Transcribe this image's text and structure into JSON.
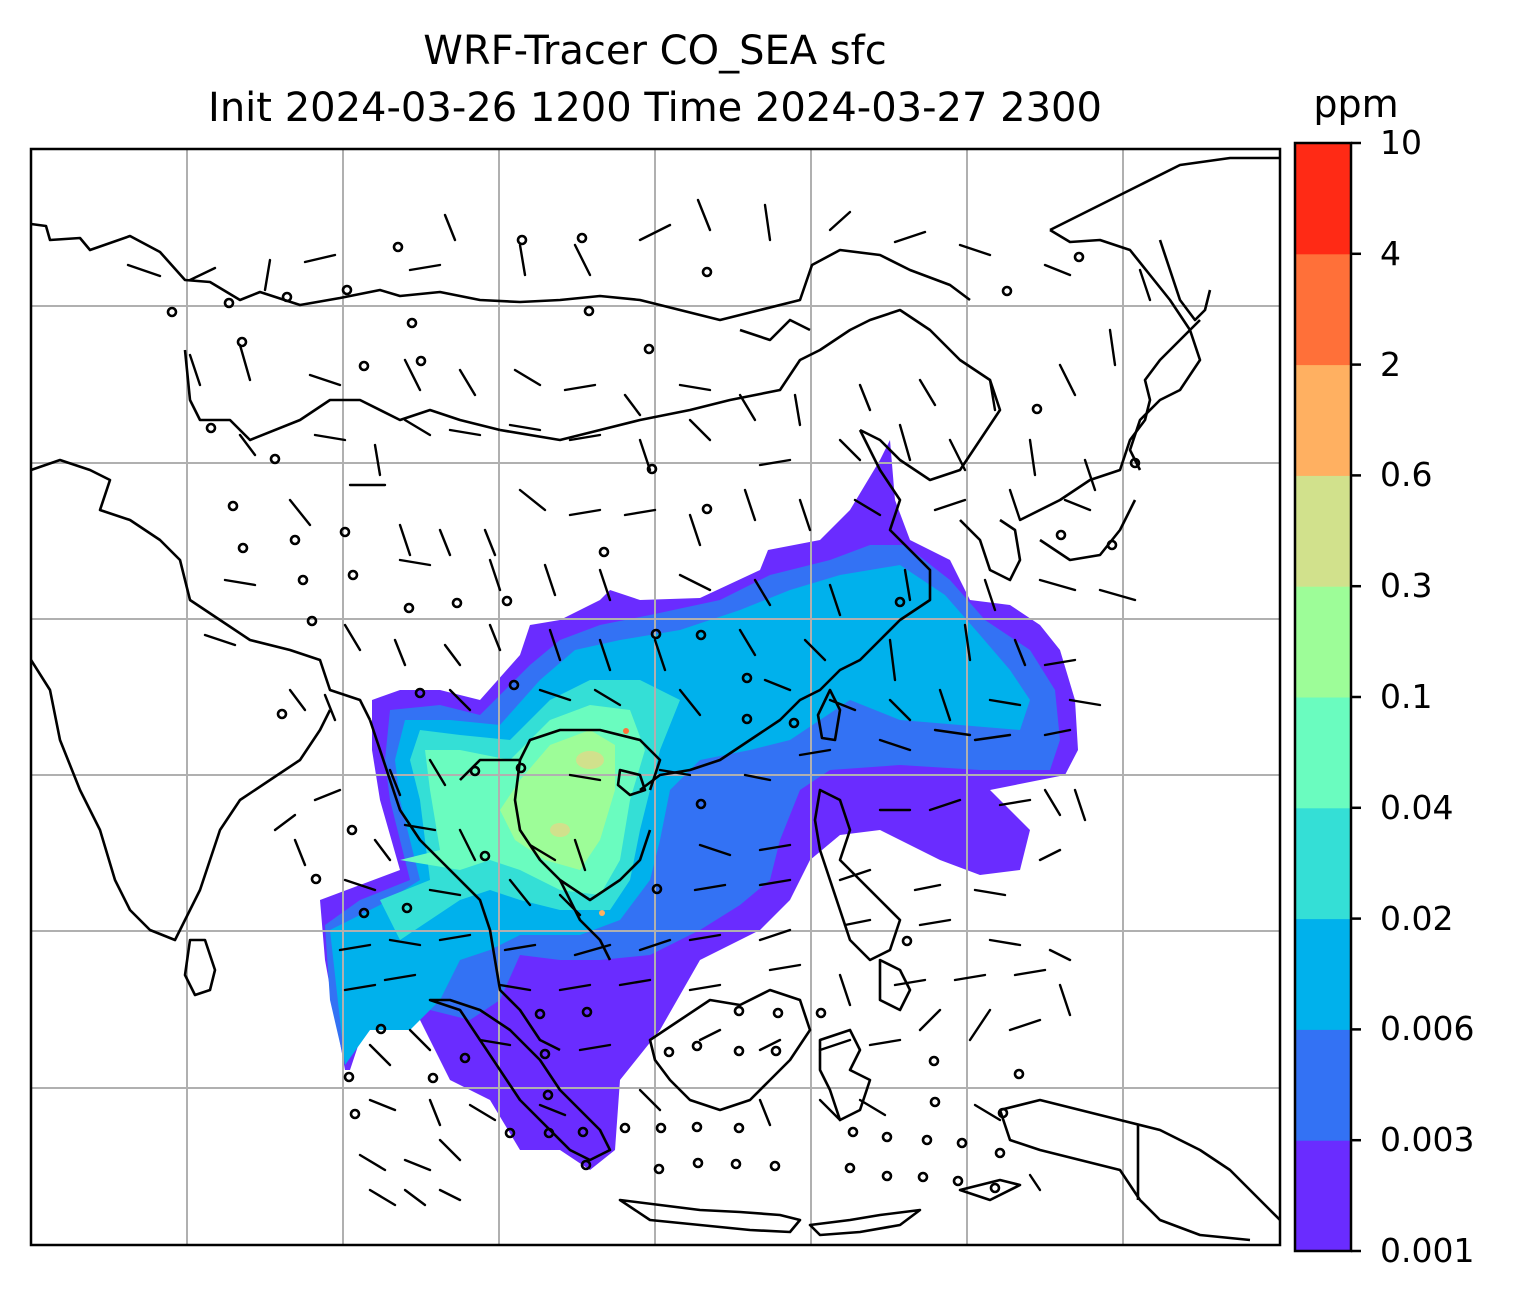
{
  "title": {
    "line1": "WRF-Tracer CO_SEA sfc",
    "line2": "Init 2024-03-26 1200 Time 2024-03-27 2300"
  },
  "map": {
    "variable": "CO_SEA",
    "level": "sfc",
    "gridlines": true,
    "coastlines": true,
    "wind_barbs": true
  },
  "colorbar": {
    "unit_label": "ppm",
    "levels": [
      "0.001",
      "0.003",
      "0.006",
      "0.02",
      "0.04",
      "0.1",
      "0.3",
      "0.6",
      "2",
      "4",
      "10"
    ],
    "colors": [
      "#6a2cff",
      "#3372f4",
      "#00b1ec",
      "#34dfd6",
      "#6afcbf",
      "#9dfd98",
      "#d1e18c",
      "#ffb061",
      "#ff7039",
      "#ff2a15"
    ]
  }
}
